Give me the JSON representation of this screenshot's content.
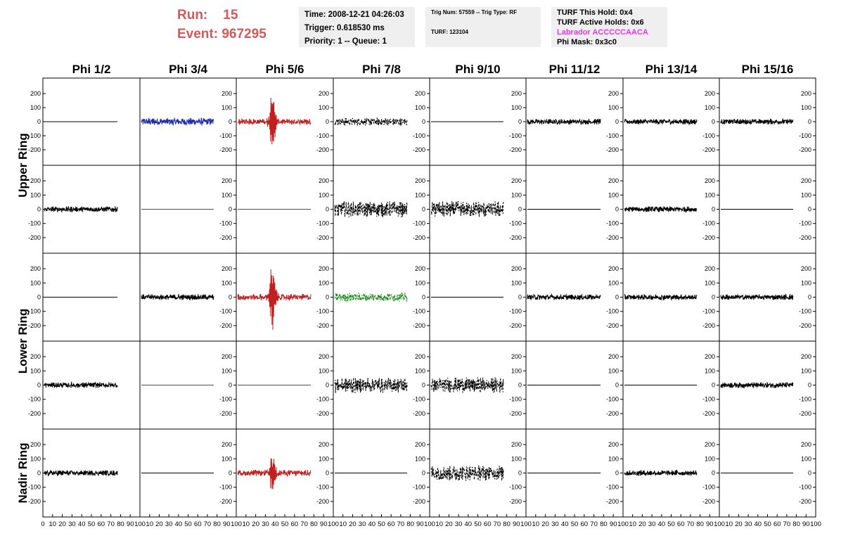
{
  "header": {
    "run_label": "Run:",
    "run_value": "15",
    "event_label": "Event:",
    "event_value": "967295"
  },
  "info_box_1": {
    "time": "Time: 2008-12-21 04:26:03",
    "trigger": "Trigger: 0.618530 ms",
    "priority": "Priority: 1 -- Queue: 1"
  },
  "info_box_2": {
    "trig": "Trig Num: 57559 -- Trig Type: RF",
    "turf": "TURF: 123104"
  },
  "info_box_3": {
    "this_hold": "TURF This Hold: 0x4",
    "active_holds": "TURF Active Holds: 0x6",
    "labrador": "Labrador ACCCCCAACA",
    "phi_mask": "Phi Mask: 0x3c0"
  },
  "colors": {
    "header_red": "#d05a5a",
    "trace_black": "#000000",
    "trace_blue": "#1f2aa8",
    "trace_red": "#c02020",
    "trace_green": "#1a8a1a",
    "labrador_magenta": "#e23ae2",
    "info_bg": "#efefef"
  },
  "chart_data": {
    "type": "line",
    "columns": [
      "Phi 1/2",
      "Phi 3/4",
      "Phi 5/6",
      "Phi 7/8",
      "Phi 9/10",
      "Phi 11/12",
      "Phi 13/14",
      "Phi 15/16"
    ],
    "row_groups": [
      "Upper Ring",
      "Lower Ring",
      "Nadir Ring"
    ],
    "y_ticks": [
      "200",
      "100",
      "0",
      "-100",
      "-200"
    ],
    "ylim": [
      -250,
      250
    ],
    "x_ticks": [
      "0",
      "10",
      "20",
      "30",
      "40",
      "50",
      "60",
      "70",
      "80",
      "90",
      "100"
    ],
    "xlim": [
      0,
      100
    ],
    "panels": [
      [
        "quiet",
        "moderate-blue",
        "pulse-big-red",
        "dashed-moderate",
        "flat",
        "moderate",
        "moderate",
        "moderate"
      ],
      [
        "moderate",
        "flat-red",
        "flat-red",
        "dashed-big",
        "dashed-big",
        "flat",
        "moderate",
        "flat"
      ],
      [
        "flat",
        "moderate",
        "pulse-big-red",
        "dashed-green",
        "flat",
        "moderate",
        "moderate",
        "moderate"
      ],
      [
        "moderate",
        "flat-red",
        "flat-red",
        "dashed-big",
        "dashed-big",
        "flat",
        "flat",
        "moderate"
      ],
      [
        "moderate",
        "flat",
        "pulse-red",
        "flat",
        "dashed-big",
        "flat",
        "moderate",
        "flat"
      ]
    ]
  }
}
